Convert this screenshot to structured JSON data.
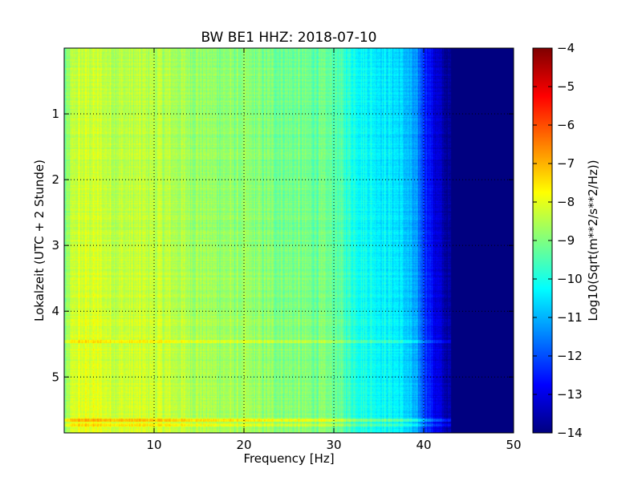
{
  "chart_data": {
    "type": "heatmap",
    "title": "BW BE1 HHZ: 2018-07-10",
    "xlabel": "Frequency [Hz]",
    "ylabel": "Lokalzeit (UTC + 2 Stunde)",
    "xlim": [
      0,
      50
    ],
    "ylim": [
      5.85,
      0
    ],
    "x_ticks": [
      10,
      20,
      30,
      40,
      50
    ],
    "x_tick_labels": [
      "10",
      "20",
      "30",
      "40",
      "50"
    ],
    "y_ticks": [
      1,
      2,
      3,
      4,
      5
    ],
    "y_tick_labels": [
      "1",
      "2",
      "3",
      "4",
      "5"
    ],
    "grid": true,
    "colormap": "jet",
    "colorbar": {
      "label": "Log10(Sqrt(m**2/s**2/Hz))",
      "range": [
        -14,
        -4
      ],
      "ticks": [
        -4,
        -5,
        -6,
        -7,
        -8,
        -9,
        -10,
        -11,
        -12,
        -13,
        -14
      ],
      "tick_labels": [
        "−4",
        "−5",
        "−6",
        "−7",
        "−8",
        "−9",
        "−10",
        "−11",
        "−12",
        "−13",
        "−14"
      ]
    },
    "spectrum_profile": {
      "frequency_hz": [
        0,
        1,
        3,
        6,
        10,
        15,
        20,
        25,
        28,
        30,
        31,
        32,
        33,
        35,
        37,
        38,
        39,
        40,
        41,
        42,
        43,
        45,
        50
      ],
      "log10_psd": [
        -9.3,
        -8.4,
        -8.3,
        -8.5,
        -8.5,
        -8.8,
        -9.0,
        -9.2,
        -9.3,
        -9.4,
        -9.7,
        -10.0,
        -10.2,
        -10.4,
        -10.6,
        -10.9,
        -11.4,
        -12.2,
        -13.0,
        -13.6,
        -14,
        -14,
        -14
      ]
    },
    "time_bands": [
      {
        "time_h": 4.45,
        "log10_psd_offset": 0.5
      },
      {
        "time_h": 5.65,
        "log10_psd_offset": 1.0
      },
      {
        "time_h": 5.72,
        "log10_psd_offset": 0.6
      }
    ]
  }
}
